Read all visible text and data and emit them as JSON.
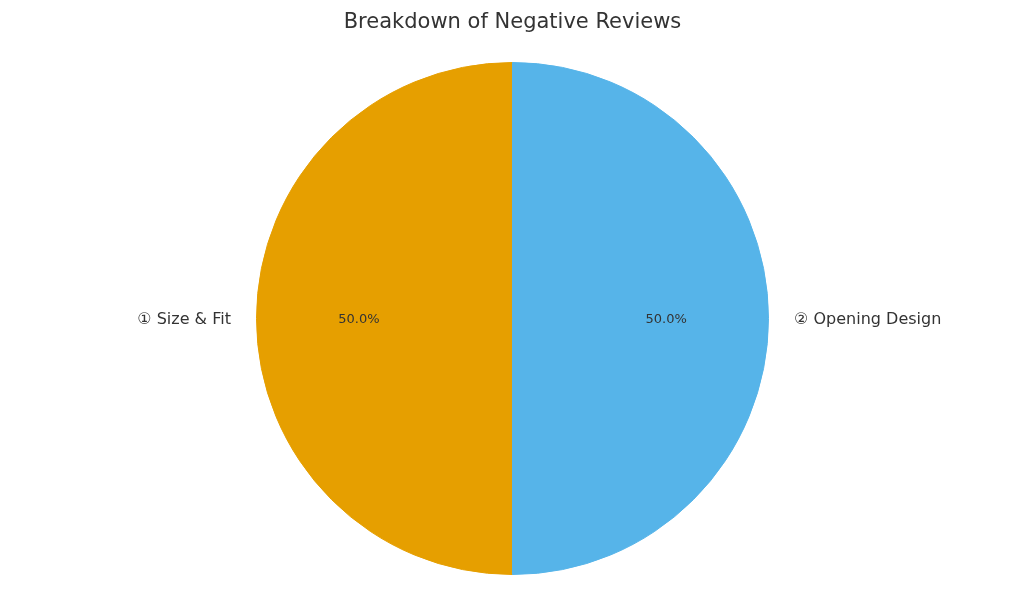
{
  "chart_data": {
    "type": "pie",
    "title": "Breakdown of Negative Reviews",
    "categories": [
      "① Size & Fit",
      "② Opening Design"
    ],
    "values": [
      50,
      50
    ],
    "colors": [
      "#e69f00",
      "#56b4e9"
    ],
    "value_labels": [
      "50.0%",
      "50.0%"
    ],
    "legend": false
  }
}
